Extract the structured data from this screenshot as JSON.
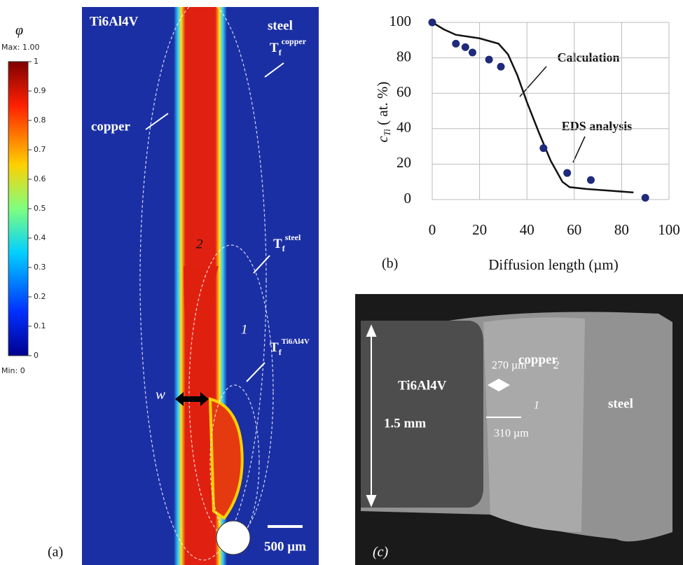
{
  "panel_a": {
    "label": "(a)",
    "colorbar": {
      "symbol": "φ",
      "max_label": "Max: 1.00",
      "min_label": "Min: 0",
      "lim": [
        0,
        1
      ],
      "ticks": [
        0,
        0.1,
        0.2,
        0.3,
        0.4,
        0.5,
        0.6,
        0.7,
        0.8,
        0.9,
        1
      ]
    },
    "left_material": "Ti6Al4V",
    "right_material": "steel",
    "middle_material": "copper",
    "isotherm_copper": {
      "base": "T",
      "sub": "f",
      "sup": "copper"
    },
    "isotherm_steel": {
      "base": "T",
      "sub": "f",
      "sup": "steel"
    },
    "isotherm_ti": {
      "base": "T",
      "sub": "f",
      "sup": "Ti6Al4V"
    },
    "region_2": "2",
    "region_1": "1",
    "width_symbol": "w",
    "scale_bar": "500 µm"
  },
  "chart_data": {
    "type": "line",
    "label": "(b)",
    "ylabel": {
      "base": "c",
      "sub": "Ti",
      "rest": " ( at. %)"
    },
    "xlabel": "Diffusion length (µm)",
    "annotations": [
      "Calculation",
      "EDS analysis"
    ],
    "xlim": [
      0,
      100
    ],
    "xticks": [
      0,
      20,
      40,
      60,
      80,
      100
    ],
    "ylim": [
      0,
      100
    ],
    "yticks": [
      0,
      20,
      40,
      60,
      80,
      100
    ],
    "grid": true,
    "series": [
      {
        "name": "Calculation",
        "type": "line",
        "color": "#111111",
        "x": [
          0,
          5,
          10,
          20,
          28,
          32,
          36,
          40,
          45,
          50,
          55,
          58,
          65,
          75,
          85
        ],
        "values": [
          100,
          96,
          93,
          91,
          88,
          82,
          70,
          55,
          38,
          22,
          10,
          7,
          6,
          5,
          4
        ]
      },
      {
        "name": "EDS analysis",
        "type": "scatter",
        "color": "#1f2a7a",
        "x": [
          0,
          10,
          14,
          17,
          24,
          29,
          47,
          57,
          67,
          90
        ],
        "values": [
          100,
          88,
          86,
          83,
          79,
          75,
          29,
          15,
          11,
          1
        ]
      }
    ]
  },
  "panel_c": {
    "label": "(c)",
    "copper": "copper",
    "ti": "Ti6Al4V",
    "steel": "steel",
    "width_copper": "270 µm",
    "width_bottom": "310 µm",
    "region_2": "2",
    "region_1": "1",
    "height": "1.5 mm"
  }
}
